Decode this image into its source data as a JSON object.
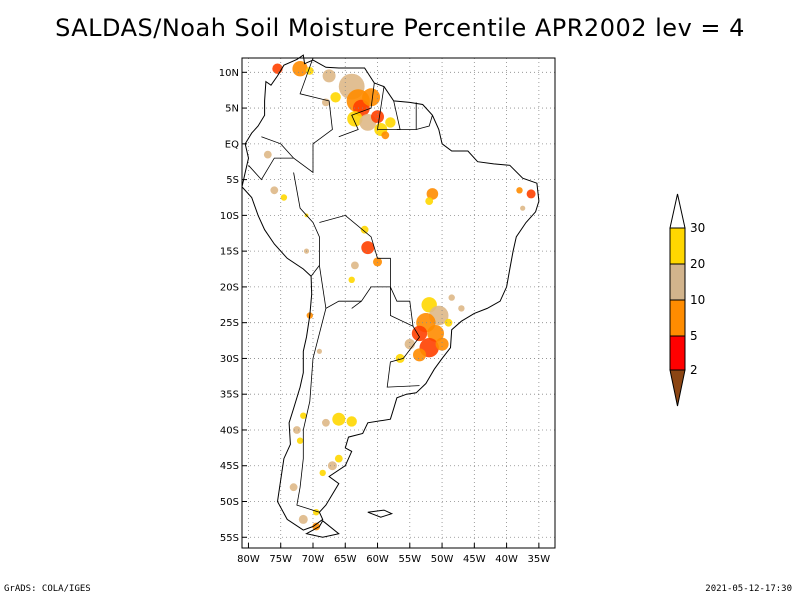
{
  "title": "SALDAS/Noah Soil Moisture Percentile APR2002 lev = 4",
  "map": {
    "lat_labels": [
      "10N",
      "5N",
      "EQ",
      "5S",
      "10S",
      "15S",
      "20S",
      "25S",
      "30S",
      "35S",
      "40S",
      "45S",
      "50S",
      "55S"
    ],
    "lon_labels": [
      "80W",
      "75W",
      "70W",
      "65W",
      "60W",
      "55W",
      "50W",
      "45W",
      "40W",
      "35W"
    ],
    "extent": {
      "lon": [
        -81,
        -32.5
      ],
      "lat": [
        -56.5,
        12
      ]
    }
  },
  "legend": {
    "labels": [
      "2",
      "5",
      "10",
      "20",
      "30"
    ],
    "colors": [
      "#8b4513",
      "#ff0000",
      "#ff8c00",
      "#d2b48c",
      "#ffd700",
      "#ffffff"
    ]
  },
  "colors": {
    "dry_extreme": "#cc0000",
    "dry_very": "#ff4000",
    "dry": "#ff8c00",
    "moderate": "#deb887",
    "abnormal": "#ffd700"
  },
  "footer": {
    "left": "GrADS: COLA/IGES",
    "right": "2021-05-12-17:30"
  }
}
